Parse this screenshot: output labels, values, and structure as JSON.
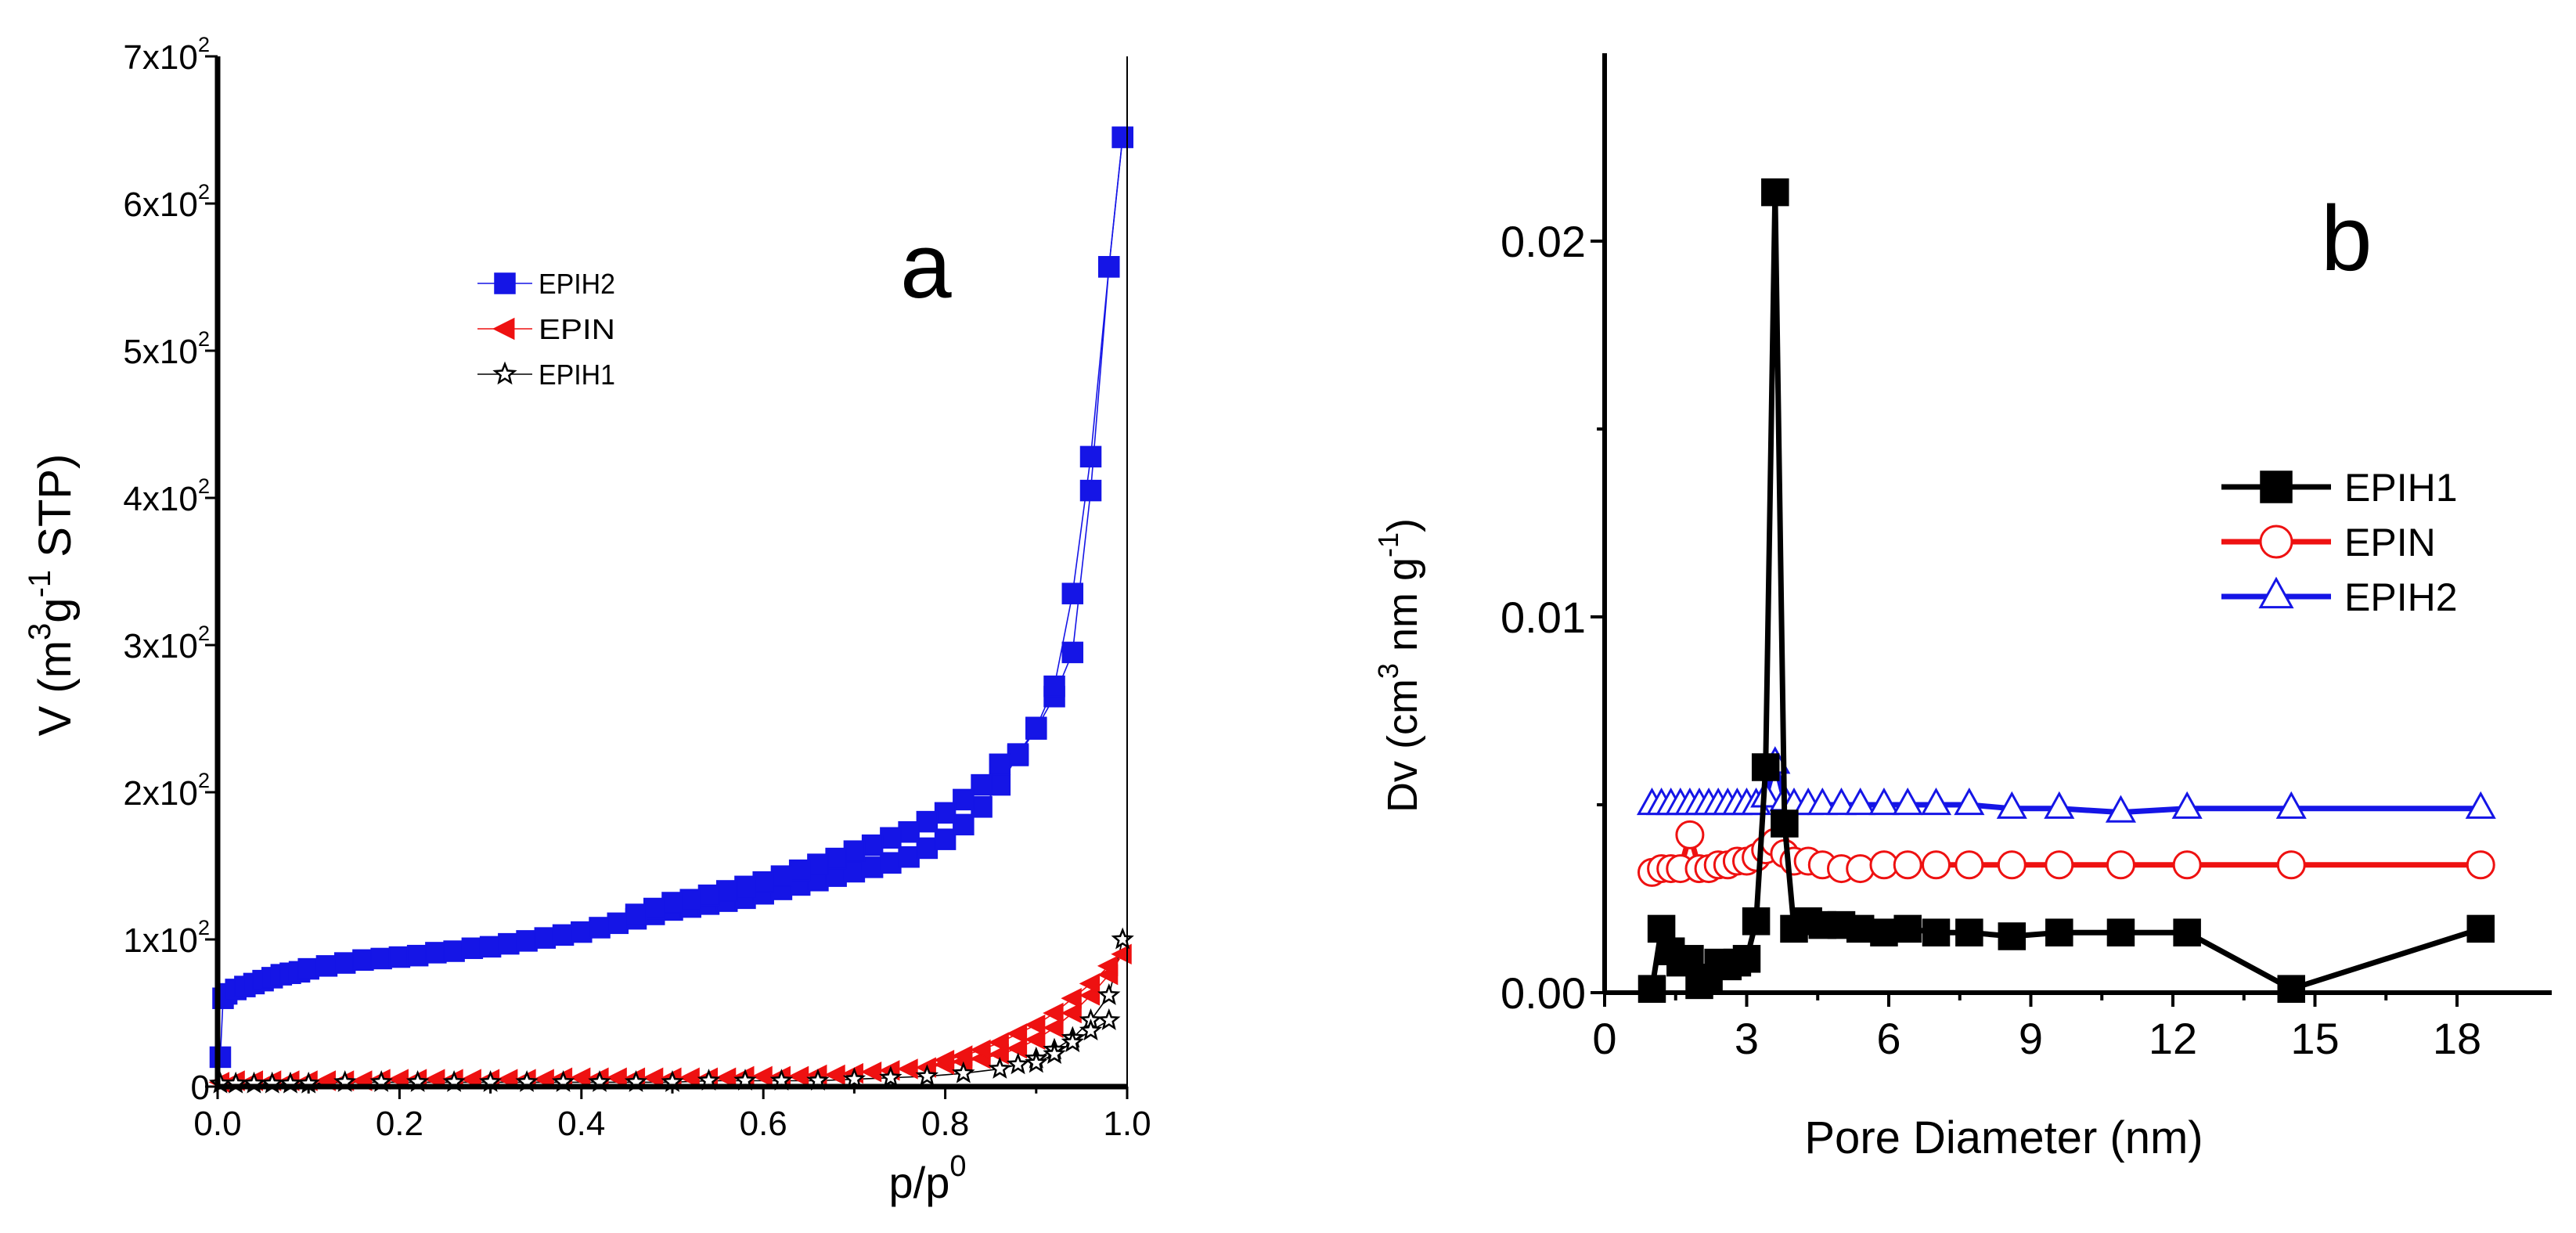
{
  "chart_data": [
    {
      "panel": "a",
      "type": "scatter",
      "panel_label": "a",
      "xlabel": "p/p",
      "xlabel_sup": "0",
      "ylabel_parts": [
        "V (m",
        "3",
        "g",
        "-1",
        " STP)"
      ],
      "xlim": [
        0,
        1
      ],
      "ylim": [
        0,
        700
      ],
      "x_ticks": [
        0,
        0.2,
        0.4,
        0.6,
        0.8,
        1.0
      ],
      "x_tick_labels": [
        "0.0",
        "0.2",
        "0.4",
        "0.6",
        "0.8",
        "1.0"
      ],
      "y_ticks": [
        0,
        100,
        200,
        300,
        400,
        500,
        600,
        700
      ],
      "y_tick_labels": [
        "0",
        "1x10",
        "2x10",
        "3x10",
        "4x10",
        "5x10",
        "6x10",
        "7x10"
      ],
      "y_tick_exponent": "2",
      "legend_position": "upper-left",
      "series": [
        {
          "name": "EPIH2",
          "color": "#1515e6",
          "marker": "square",
          "filled": true,
          "adsorption": {
            "x": [
              0.003,
              0.006,
              0.01,
              0.02,
              0.03,
              0.04,
              0.05,
              0.06,
              0.07,
              0.08,
              0.09,
              0.1,
              0.12,
              0.14,
              0.16,
              0.18,
              0.2,
              0.22,
              0.24,
              0.26,
              0.28,
              0.3,
              0.32,
              0.34,
              0.36,
              0.38,
              0.4,
              0.42,
              0.44,
              0.46,
              0.48,
              0.5,
              0.52,
              0.54,
              0.56,
              0.58,
              0.6,
              0.62,
              0.64,
              0.66,
              0.68,
              0.7,
              0.72,
              0.74,
              0.76,
              0.78,
              0.8,
              0.82,
              0.84,
              0.86,
              0.88,
              0.9,
              0.92,
              0.94,
              0.96,
              0.98,
              0.995
            ],
            "y": [
              20,
              60,
              63,
              66,
              68,
              70,
              72,
              74,
              76,
              77,
              78,
              80,
              82,
              84,
              86,
              87,
              88,
              89,
              91,
              92,
              94,
              95,
              97,
              99,
              101,
              103,
              105,
              108,
              111,
              114,
              117,
              120,
              122,
              124,
              126,
              128,
              131,
              134,
              137,
              140,
              143,
              146,
              149,
              152,
              156,
              162,
              168,
              178,
              190,
              205,
              225,
              243,
              265,
              295,
              405,
              557,
              645
            ]
          },
          "desorption": {
            "x": [
              0.995,
              0.98,
              0.96,
              0.94,
              0.92,
              0.9,
              0.88,
              0.86,
              0.84,
              0.82,
              0.8,
              0.78,
              0.76,
              0.74,
              0.72,
              0.7,
              0.68,
              0.66,
              0.64,
              0.62,
              0.6,
              0.58,
              0.56,
              0.54,
              0.52,
              0.5,
              0.48,
              0.46
            ],
            "y": [
              645,
              557,
              428,
              335,
              272,
              244,
              226,
              219,
              205,
              195,
              186,
              180,
              173,
              169,
              164,
              160,
              155,
              151,
              147,
              143,
              139,
              136,
              133,
              130,
              127,
              125,
              121,
              117
            ]
          }
        },
        {
          "name": "EPIN",
          "color": "#ee1111",
          "marker": "triangle-left",
          "filled": true,
          "adsorption": {
            "x": [
              0.003,
              0.02,
              0.04,
              0.06,
              0.08,
              0.1,
              0.12,
              0.14,
              0.16,
              0.18,
              0.2,
              0.22,
              0.24,
              0.26,
              0.28,
              0.3,
              0.32,
              0.34,
              0.36,
              0.38,
              0.4,
              0.42,
              0.44,
              0.46,
              0.48,
              0.5,
              0.52,
              0.54,
              0.56,
              0.58,
              0.6,
              0.62,
              0.64,
              0.66,
              0.68,
              0.7,
              0.72,
              0.74,
              0.76,
              0.78,
              0.8,
              0.82,
              0.84,
              0.86,
              0.88,
              0.9,
              0.92,
              0.94,
              0.96,
              0.98,
              0.995
            ],
            "y": [
              3,
              4,
              4,
              4,
              4,
              4,
              4,
              4,
              4,
              5,
              5,
              5,
              5,
              5,
              5,
              5,
              5,
              5,
              5,
              6,
              6,
              6,
              6,
              6,
              6,
              6,
              6,
              6,
              6,
              7,
              7,
              7,
              7,
              8,
              8,
              9,
              10,
              11,
              12,
              13,
              15,
              17,
              19,
              22,
              26,
              32,
              40,
              50,
              62,
              76,
              90
            ]
          },
          "desorption": {
            "x": [
              0.98,
              0.96,
              0.94,
              0.92,
              0.9,
              0.88,
              0.86,
              0.84,
              0.82,
              0.8
            ],
            "y": [
              82,
              70,
              60,
              50,
              42,
              36,
              30,
              25,
              21,
              18
            ]
          }
        },
        {
          "name": "EPIH1",
          "color": "#000000",
          "marker": "star",
          "filled": false,
          "adsorption": {
            "x": [
              0.003,
              0.02,
              0.04,
              0.06,
              0.08,
              0.1,
              0.14,
              0.18,
              0.22,
              0.26,
              0.3,
              0.34,
              0.38,
              0.42,
              0.46,
              0.5,
              0.54,
              0.58,
              0.62,
              0.66,
              0.7,
              0.74,
              0.78,
              0.82,
              0.86,
              0.88,
              0.9,
              0.92,
              0.94,
              0.96,
              0.98,
              0.995
            ],
            "y": [
              2,
              2,
              2,
              2,
              2,
              2,
              3,
              3,
              3,
              3,
              3,
              3,
              3,
              3,
              3,
              3,
              4,
              4,
              4,
              4,
              5,
              6,
              7,
              9,
              12,
              15,
              19,
              25,
              33,
              45,
              62,
              100
            ]
          },
          "desorption": {
            "x": [
              0.98,
              0.96,
              0.94,
              0.92,
              0.9
            ],
            "y": [
              45,
              38,
              30,
              22,
              16
            ]
          }
        }
      ]
    },
    {
      "panel": "b",
      "type": "line",
      "panel_label": "b",
      "xlabel": "Pore Diameter (nm)",
      "ylabel_parts": [
        "Dv (cm",
        "3",
        " nm g",
        "-1",
        ")"
      ],
      "xlim": [
        0,
        20
      ],
      "ylim": [
        0,
        0.025
      ],
      "x_ticks": [
        0,
        3,
        6,
        9,
        12,
        15,
        18
      ],
      "x_tick_labels": [
        "0",
        "3",
        "6",
        "9",
        "12",
        "15",
        "18"
      ],
      "y_ticks": [
        0,
        0.01,
        0.02
      ],
      "y_tick_labels": [
        "0.00",
        "0.01",
        "0.02"
      ],
      "legend_position": "right",
      "series": [
        {
          "name": "EPIH1",
          "color": "#000000",
          "marker": "square",
          "filled": true,
          "x": [
            1.0,
            1.2,
            1.4,
            1.6,
            1.8,
            2.0,
            2.2,
            2.4,
            2.6,
            2.8,
            3.0,
            3.2,
            3.4,
            3.6,
            3.8,
            4.0,
            4.3,
            4.6,
            5.0,
            5.4,
            5.9,
            6.4,
            7.0,
            7.7,
            8.6,
            9.6,
            10.9,
            12.3,
            14.5,
            18.5
          ],
          "y": [
            0.0001,
            0.0017,
            0.0011,
            0.0008,
            0.0009,
            0.0002,
            0.0004,
            0.0008,
            0.0007,
            0.0008,
            0.0009,
            0.0019,
            0.006,
            0.0213,
            0.0045,
            0.0017,
            0.0019,
            0.0018,
            0.0018,
            0.0017,
            0.0016,
            0.0017,
            0.0016,
            0.0016,
            0.0015,
            0.0016,
            0.0016,
            0.0016,
            0.0001,
            0.0017
          ]
        },
        {
          "name": "EPIN",
          "color": "#ee1111",
          "marker": "circle",
          "filled": false,
          "x": [
            1.0,
            1.2,
            1.4,
            1.6,
            1.8,
            2.0,
            2.2,
            2.4,
            2.6,
            2.8,
            3.0,
            3.2,
            3.4,
            3.6,
            3.8,
            4.0,
            4.3,
            4.6,
            5.0,
            5.4,
            5.9,
            6.4,
            7.0,
            7.7,
            8.6,
            9.6,
            10.9,
            12.3,
            14.5,
            18.5
          ],
          "y": [
            0.0032,
            0.0033,
            0.0033,
            0.0033,
            0.0042,
            0.0033,
            0.0033,
            0.0034,
            0.0034,
            0.0035,
            0.0035,
            0.0036,
            0.0038,
            0.004,
            0.0037,
            0.0035,
            0.0035,
            0.0034,
            0.0033,
            0.0033,
            0.0034,
            0.0034,
            0.0034,
            0.0034,
            0.0034,
            0.0034,
            0.0034,
            0.0034,
            0.0034,
            0.0034
          ]
        },
        {
          "name": "EPIH2",
          "color": "#1515e6",
          "marker": "triangle-up",
          "filled": false,
          "x": [
            1.0,
            1.2,
            1.4,
            1.6,
            1.8,
            2.0,
            2.2,
            2.4,
            2.6,
            2.8,
            3.0,
            3.2,
            3.4,
            3.6,
            3.8,
            4.0,
            4.3,
            4.6,
            5.0,
            5.4,
            5.9,
            6.4,
            7.0,
            7.7,
            8.6,
            9.6,
            10.9,
            12.3,
            14.5,
            18.5
          ],
          "y": [
            0.005,
            0.005,
            0.005,
            0.005,
            0.005,
            0.005,
            0.005,
            0.005,
            0.005,
            0.005,
            0.005,
            0.005,
            0.0052,
            0.0061,
            0.0051,
            0.005,
            0.005,
            0.005,
            0.005,
            0.005,
            0.005,
            0.005,
            0.005,
            0.005,
            0.0049,
            0.0049,
            0.0048,
            0.0049,
            0.0049,
            0.0049
          ]
        }
      ]
    }
  ]
}
